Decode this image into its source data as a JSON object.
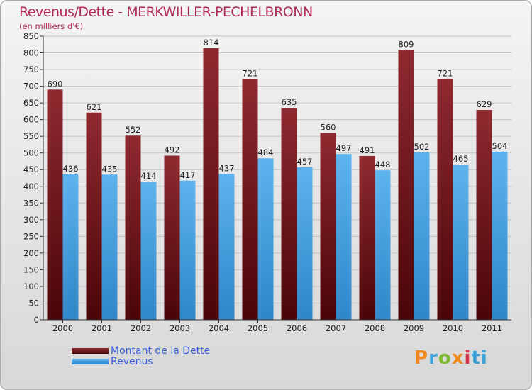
{
  "header": {
    "title": "Revenus/Dette - MERKWILLER-PECHELBRONN",
    "subtitle": "(en milliers d'€)"
  },
  "legend": {
    "items": [
      {
        "label": "Montant de la Dette",
        "color": "#6b1417"
      },
      {
        "label": "Revenus",
        "color": "#4aa3e3"
      }
    ]
  },
  "brand": {
    "text": [
      "P",
      "r",
      "o",
      "x",
      "i",
      "ti"
    ]
  },
  "chart_data": {
    "type": "bar",
    "title": "Revenus/Dette - MERKWILLER-PECHELBRONN",
    "ylabel": "(en milliers d'€)",
    "xlabel": "",
    "categories": [
      "2000",
      "2001",
      "2002",
      "2003",
      "2004",
      "2005",
      "2006",
      "2007",
      "2008",
      "2009",
      "2010",
      "2011"
    ],
    "series": [
      {
        "name": "Montant de la Dette",
        "color": "#6b1417",
        "values": [
          690,
          621,
          552,
          492,
          814,
          721,
          635,
          560,
          491,
          809,
          721,
          629
        ]
      },
      {
        "name": "Revenus",
        "color": "#4aa3e3",
        "values": [
          436,
          435,
          414,
          417,
          437,
          484,
          457,
          497,
          448,
          502,
          465,
          504
        ]
      }
    ],
    "ylim": [
      0,
      850
    ],
    "yticks": [
      0,
      50,
      100,
      150,
      200,
      250,
      300,
      350,
      400,
      450,
      500,
      550,
      600,
      650,
      700,
      750,
      800,
      850
    ],
    "grid": true,
    "legend_position": "bottom-left"
  }
}
